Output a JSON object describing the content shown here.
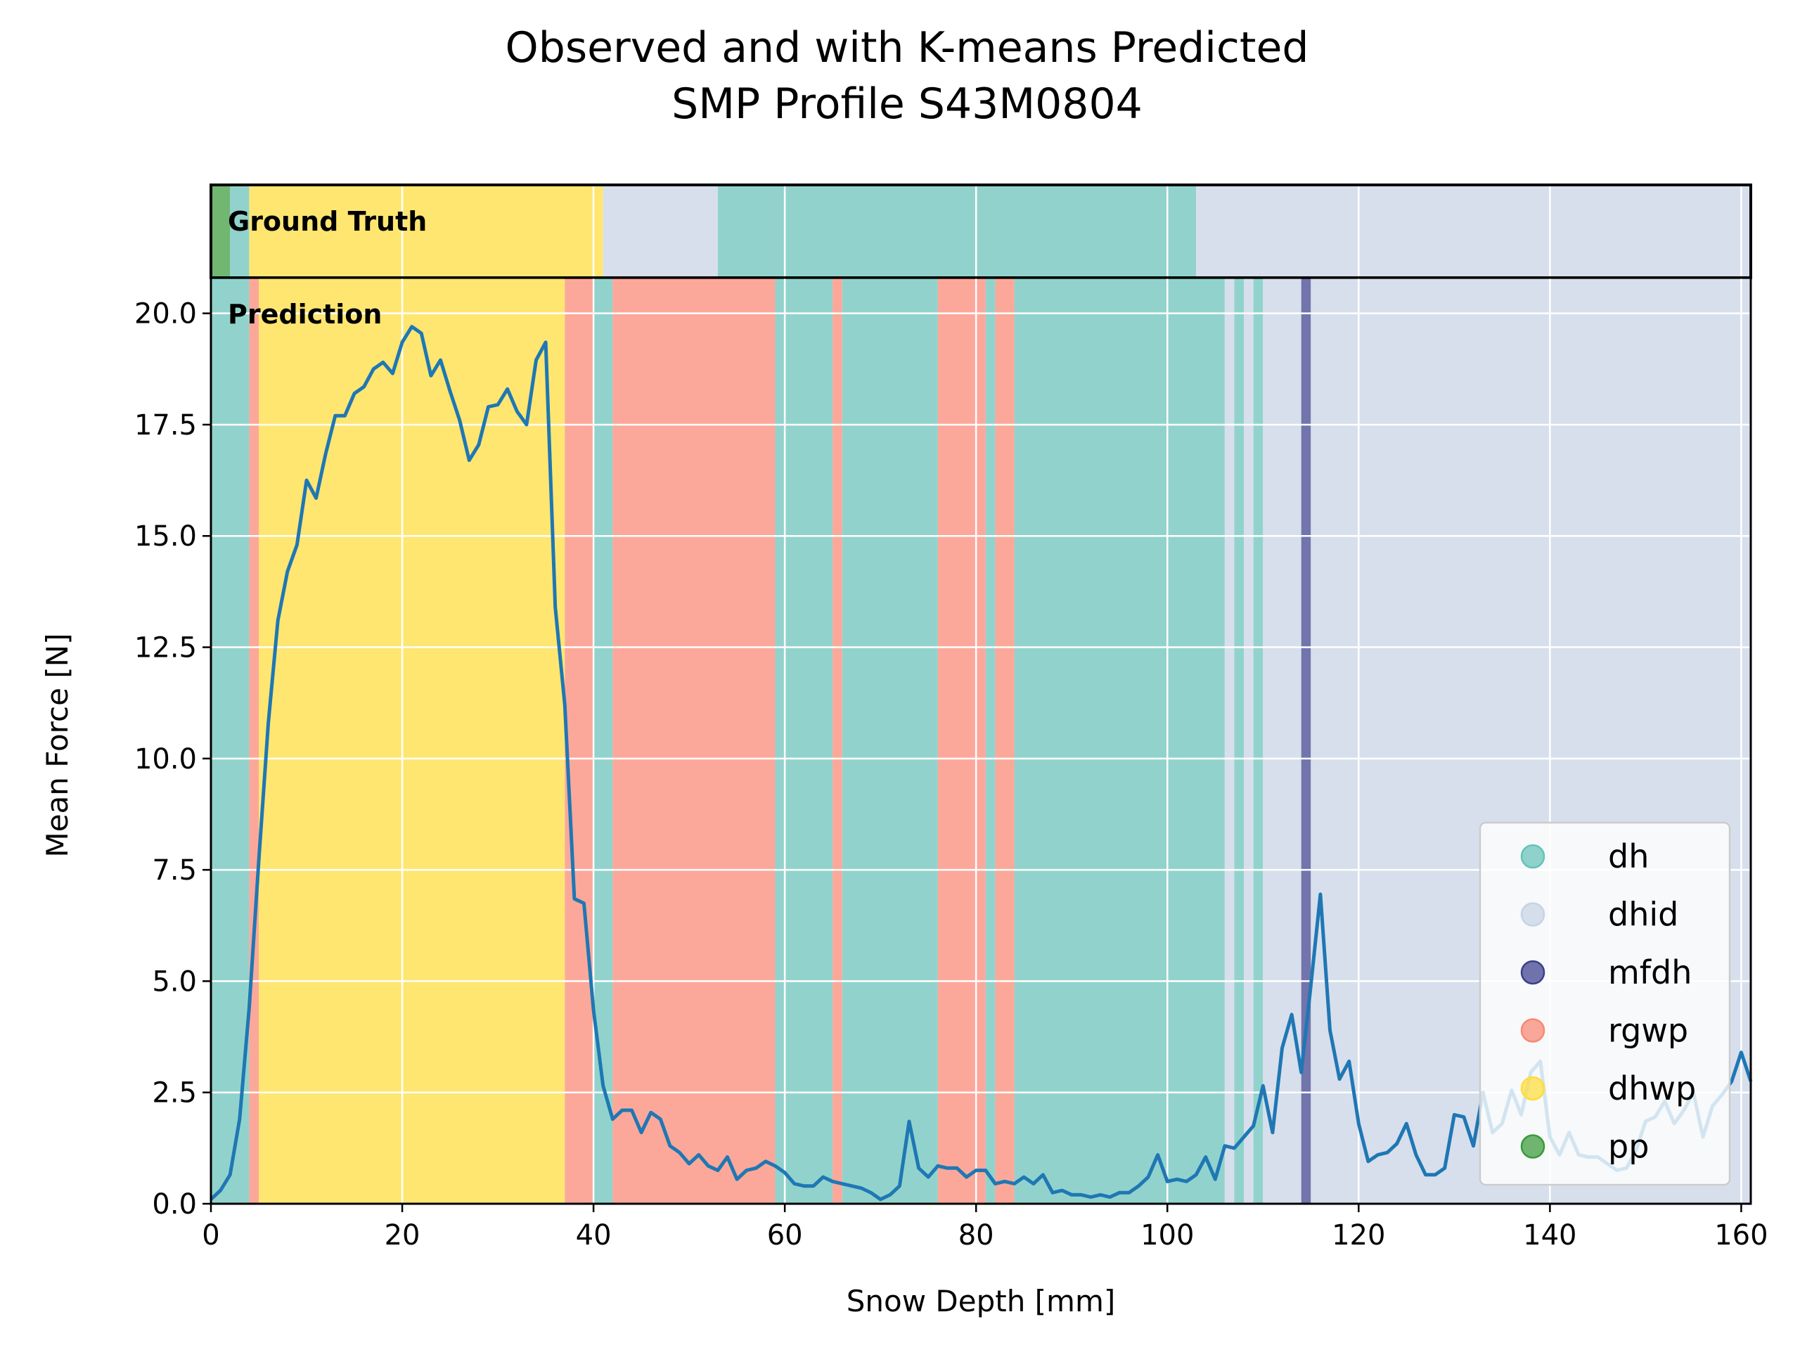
{
  "chart_data": {
    "type": "line",
    "title": "Observed and with K-means Predicted",
    "subtitle": "SMP Profile S43M0804",
    "xlabel": "Snow Depth [mm]",
    "ylabel": "Mean Force [N]",
    "xlim": [
      0,
      161
    ],
    "ylim": [
      0,
      20.8
    ],
    "xticks": [
      "0",
      "20",
      "40",
      "60",
      "80",
      "100",
      "120",
      "140",
      "160"
    ],
    "yticks": [
      "0.0",
      "2.5",
      "5.0",
      "7.5",
      "10.0",
      "12.5",
      "15.0",
      "17.5",
      "20.0"
    ],
    "grid": true,
    "legend_position": "lower-right",
    "panel_labels": {
      "ground_truth": "Ground Truth",
      "prediction": "Prediction"
    },
    "classes": [
      {
        "name": "dh",
        "color": "#66c2b8"
      },
      {
        "name": "dhid",
        "color": "#c7d3e5"
      },
      {
        "name": "mfdh",
        "color": "#3b3f8c"
      },
      {
        "name": "rgwp",
        "color": "#fa8773"
      },
      {
        "name": "dhwp",
        "color": "#fedd3a"
      },
      {
        "name": "pp",
        "color": "#3a9a3a"
      }
    ],
    "ground_truth_segments": [
      {
        "start": 0,
        "end": 2,
        "class": "pp"
      },
      {
        "start": 2,
        "end": 4,
        "class": "dh"
      },
      {
        "start": 4,
        "end": 41,
        "class": "dhwp"
      },
      {
        "start": 41,
        "end": 53,
        "class": "dhid"
      },
      {
        "start": 53,
        "end": 103,
        "class": "dh"
      },
      {
        "start": 103,
        "end": 161,
        "class": "dhid"
      }
    ],
    "prediction_segments": [
      {
        "start": 0,
        "end": 4,
        "class": "dh"
      },
      {
        "start": 4,
        "end": 5,
        "class": "rgwp"
      },
      {
        "start": 5,
        "end": 37,
        "class": "dhwp"
      },
      {
        "start": 37,
        "end": 40,
        "class": "rgwp"
      },
      {
        "start": 40,
        "end": 42,
        "class": "dh"
      },
      {
        "start": 42,
        "end": 59,
        "class": "rgwp"
      },
      {
        "start": 59,
        "end": 65,
        "class": "dh"
      },
      {
        "start": 65,
        "end": 66,
        "class": "rgwp"
      },
      {
        "start": 66,
        "end": 76,
        "class": "dh"
      },
      {
        "start": 76,
        "end": 81,
        "class": "rgwp"
      },
      {
        "start": 81,
        "end": 82,
        "class": "dh"
      },
      {
        "start": 82,
        "end": 84,
        "class": "rgwp"
      },
      {
        "start": 84,
        "end": 106,
        "class": "dh"
      },
      {
        "start": 106,
        "end": 107,
        "class": "dhid"
      },
      {
        "start": 107,
        "end": 108,
        "class": "dh"
      },
      {
        "start": 108,
        "end": 109,
        "class": "dhid"
      },
      {
        "start": 109,
        "end": 110,
        "class": "dh"
      },
      {
        "start": 110,
        "end": 114,
        "class": "dhid"
      },
      {
        "start": 114,
        "end": 115,
        "class": "mfdh"
      },
      {
        "start": 115,
        "end": 161,
        "class": "dhid"
      }
    ],
    "series": [
      {
        "color": "#1f77b4",
        "x": [
          0,
          1,
          2,
          3,
          4,
          5,
          6,
          7,
          8,
          9,
          10,
          11,
          12,
          13,
          14,
          15,
          16,
          17,
          18,
          19,
          20,
          21,
          22,
          23,
          24,
          25,
          26,
          27,
          28,
          29,
          30,
          31,
          32,
          33,
          34,
          35,
          36,
          37,
          38,
          39,
          40,
          41,
          42,
          43,
          44,
          45,
          46,
          47,
          48,
          49,
          50,
          51,
          52,
          53,
          54,
          55,
          56,
          57,
          58,
          59,
          60,
          61,
          62,
          63,
          64,
          65,
          66,
          67,
          68,
          69,
          70,
          71,
          72,
          73,
          74,
          75,
          76,
          77,
          78,
          79,
          80,
          81,
          82,
          83,
          84,
          85,
          86,
          87,
          88,
          89,
          90,
          91,
          92,
          93,
          94,
          95,
          96,
          97,
          98,
          99,
          100,
          101,
          102,
          103,
          104,
          105,
          106,
          107,
          108,
          109,
          110,
          111,
          112,
          113,
          114,
          115,
          116,
          117,
          118,
          119,
          120,
          121,
          122,
          123,
          124,
          125,
          126,
          127,
          128,
          129,
          130,
          131,
          132,
          133,
          134,
          135,
          136,
          137,
          138,
          139,
          140,
          141,
          142,
          143,
          144,
          145,
          146,
          147,
          148,
          149,
          150,
          151,
          152,
          153,
          154,
          155,
          156,
          157,
          158,
          159,
          160,
          161
        ],
        "y": [
          0.1,
          0.3,
          0.65,
          1.9,
          4.4,
          7.7,
          10.8,
          13.1,
          14.2,
          14.8,
          16.25,
          15.85,
          16.85,
          17.7,
          17.7,
          18.2,
          18.35,
          18.75,
          18.9,
          18.65,
          19.35,
          19.7,
          19.55,
          18.6,
          18.95,
          18.25,
          17.6,
          16.7,
          17.05,
          17.9,
          17.95,
          18.3,
          17.8,
          17.5,
          18.95,
          19.35,
          13.4,
          11.2,
          6.85,
          6.75,
          4.35,
          2.65,
          1.9,
          2.1,
          2.1,
          1.6,
          2.05,
          1.9,
          1.3,
          1.15,
          0.9,
          1.1,
          0.85,
          0.75,
          1.05,
          0.55,
          0.75,
          0.8,
          0.95,
          0.85,
          0.7,
          0.45,
          0.4,
          0.4,
          0.6,
          0.5,
          0.45,
          0.4,
          0.35,
          0.25,
          0.1,
          0.2,
          0.4,
          1.85,
          0.8,
          0.6,
          0.85,
          0.8,
          0.8,
          0.6,
          0.75,
          0.75,
          0.45,
          0.5,
          0.45,
          0.6,
          0.45,
          0.65,
          0.25,
          0.3,
          0.2,
          0.2,
          0.15,
          0.2,
          0.15,
          0.25,
          0.25,
          0.4,
          0.6,
          1.1,
          0.5,
          0.55,
          0.5,
          0.65,
          1.05,
          0.55,
          1.3,
          1.25,
          1.5,
          1.75,
          2.65,
          1.6,
          3.5,
          4.25,
          2.95,
          4.9,
          6.95,
          3.9,
          2.8,
          3.2,
          1.8,
          0.95,
          1.1,
          1.15,
          1.35,
          1.8,
          1.1,
          0.65,
          0.65,
          0.8,
          2.0,
          1.95,
          1.3,
          2.5,
          1.6,
          1.8,
          2.55,
          2.0,
          2.95,
          3.2,
          1.5,
          1.1,
          1.6,
          1.1,
          1.05,
          1.05,
          0.9,
          0.75,
          0.8,
          1.2,
          1.85,
          1.95,
          2.3,
          1.8,
          2.1,
          2.5,
          1.5,
          2.2,
          2.45,
          2.75,
          3.4,
          2.75
        ]
      }
    ]
  }
}
